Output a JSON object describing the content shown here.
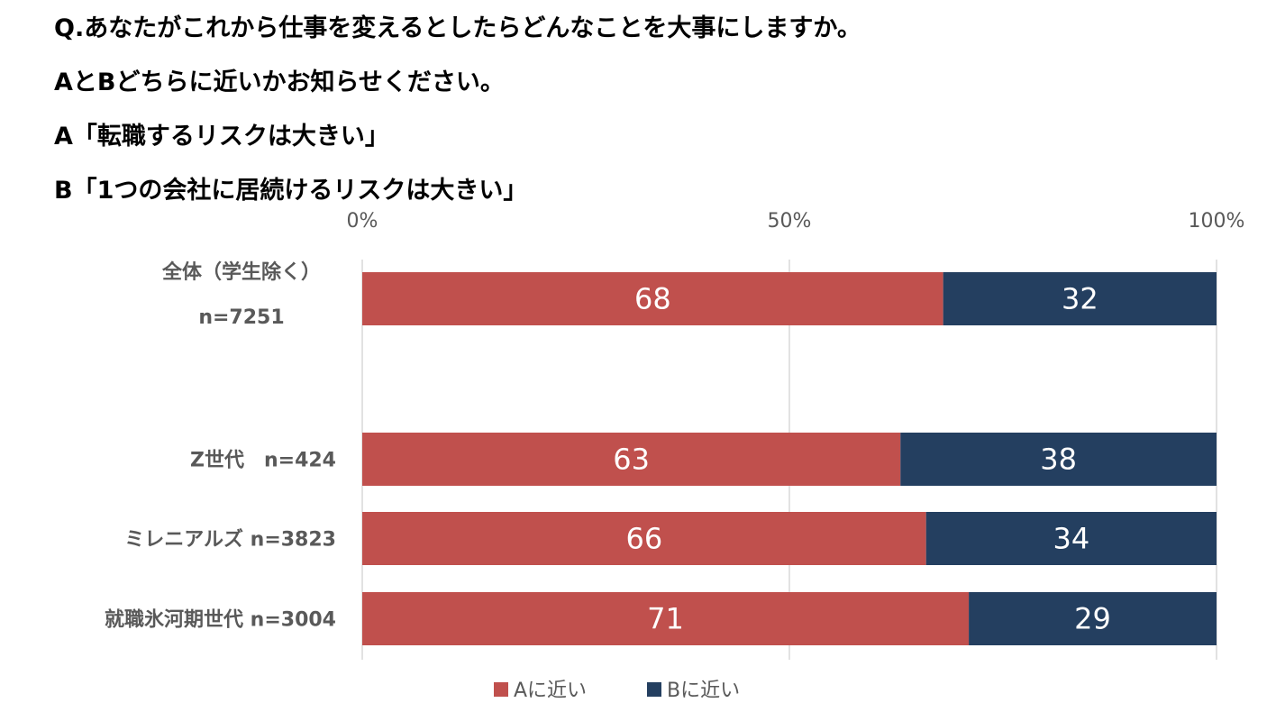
{
  "question": {
    "line1": "Q.あなたがこれから仕事を変えるとしたらどんなことを大事にしますか。",
    "line2": "AとBどちらに近いかお知らせください。",
    "line3": "A「転職するリスクは大きい」",
    "line4": "B「1つの会社に居続けるリスクは大きい」"
  },
  "chart_data": {
    "type": "bar",
    "orientation": "horizontal",
    "stacked": true,
    "percent_stacked": true,
    "categories": [
      {
        "label_lines": [
          "全体（学生除く）",
          "n=7251"
        ]
      },
      {
        "label_lines": [
          "Z世代　n=424"
        ]
      },
      {
        "label_lines": [
          "ミレニアルズ n=3823"
        ]
      },
      {
        "label_lines": [
          "就職氷河期世代 n=3004"
        ]
      }
    ],
    "series": [
      {
        "name": "Aに近い",
        "color": "#C0504D",
        "values": [
          68,
          63,
          66,
          71
        ]
      },
      {
        "name": "Bに近い",
        "color": "#243F60",
        "values": [
          32,
          38,
          34,
          29
        ]
      }
    ],
    "x_ticks": [
      "0%",
      "50%",
      "100%"
    ],
    "xlim": [
      0,
      100
    ],
    "grid": true,
    "legend_position": "bottom",
    "tick_position": "top"
  }
}
